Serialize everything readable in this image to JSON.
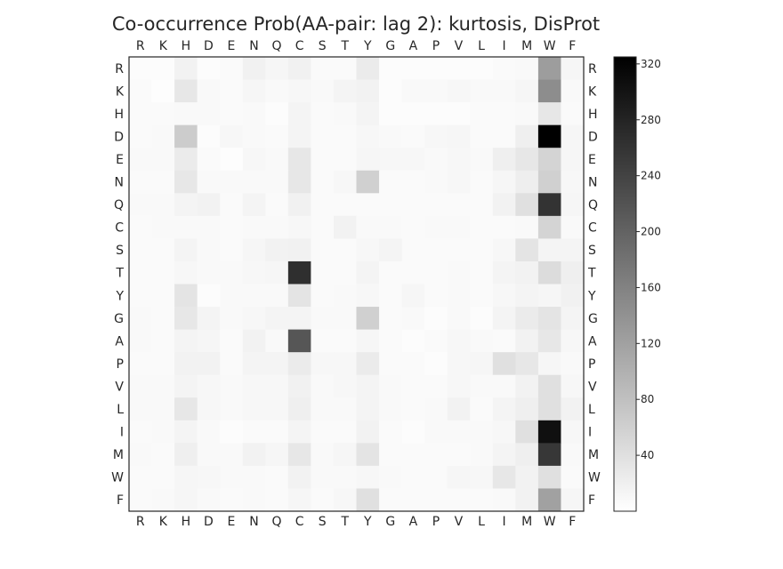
{
  "chart_data": {
    "type": "heatmap",
    "title": "Co-occurrence Prob(AA-pair: lag 2): kurtosis, DisProt",
    "x_labels": [
      "R",
      "K",
      "H",
      "D",
      "E",
      "N",
      "Q",
      "C",
      "S",
      "T",
      "Y",
      "G",
      "A",
      "P",
      "V",
      "L",
      "I",
      "M",
      "W",
      "F"
    ],
    "y_labels": [
      "R",
      "K",
      "H",
      "D",
      "E",
      "N",
      "Q",
      "C",
      "S",
      "T",
      "Y",
      "G",
      "A",
      "P",
      "V",
      "L",
      "I",
      "M",
      "W",
      "F"
    ],
    "colorbar": {
      "min": 0,
      "max": 325,
      "ticks": [
        40,
        80,
        120,
        160,
        200,
        240,
        280,
        320
      ],
      "colormap": "Greys"
    },
    "values": [
      [
        4,
        4,
        16,
        4,
        6,
        18,
        12,
        18,
        6,
        6,
        26,
        4,
        4,
        4,
        4,
        4,
        6,
        8,
        125,
        12
      ],
      [
        6,
        2,
        30,
        8,
        6,
        12,
        8,
        10,
        8,
        14,
        16,
        4,
        8,
        8,
        10,
        8,
        8,
        12,
        145,
        8
      ],
      [
        6,
        6,
        8,
        8,
        6,
        8,
        4,
        14,
        6,
        8,
        14,
        4,
        4,
        4,
        4,
        6,
        6,
        8,
        30,
        6
      ],
      [
        6,
        8,
        65,
        4,
        10,
        8,
        6,
        14,
        6,
        6,
        10,
        8,
        6,
        10,
        12,
        6,
        6,
        20,
        325,
        12
      ],
      [
        8,
        8,
        25,
        6,
        2,
        10,
        8,
        30,
        6,
        6,
        12,
        10,
        10,
        8,
        10,
        8,
        20,
        30,
        55,
        12
      ],
      [
        6,
        6,
        30,
        8,
        8,
        8,
        8,
        30,
        6,
        10,
        60,
        6,
        6,
        8,
        10,
        6,
        12,
        22,
        60,
        10
      ],
      [
        8,
        8,
        14,
        16,
        6,
        14,
        6,
        18,
        6,
        6,
        6,
        6,
        6,
        6,
        6,
        6,
        16,
        40,
        260,
        12
      ],
      [
        6,
        8,
        8,
        8,
        6,
        8,
        8,
        10,
        6,
        16,
        8,
        8,
        6,
        8,
        8,
        6,
        6,
        8,
        55,
        8
      ],
      [
        6,
        6,
        14,
        8,
        6,
        12,
        16,
        18,
        6,
        6,
        10,
        14,
        6,
        6,
        6,
        6,
        10,
        35,
        14,
        14
      ],
      [
        6,
        6,
        10,
        8,
        8,
        10,
        12,
        265,
        6,
        6,
        14,
        6,
        6,
        6,
        8,
        6,
        14,
        16,
        45,
        20
      ],
      [
        6,
        6,
        35,
        4,
        8,
        8,
        8,
        35,
        6,
        8,
        10,
        6,
        12,
        6,
        8,
        6,
        10,
        14,
        12,
        18
      ],
      [
        8,
        6,
        30,
        14,
        8,
        10,
        14,
        14,
        8,
        8,
        60,
        6,
        8,
        4,
        8,
        4,
        14,
        26,
        35,
        14
      ],
      [
        8,
        6,
        14,
        12,
        6,
        16,
        8,
        215,
        6,
        6,
        12,
        6,
        4,
        6,
        10,
        8,
        6,
        16,
        30,
        10
      ],
      [
        6,
        6,
        16,
        16,
        6,
        14,
        14,
        25,
        10,
        10,
        25,
        6,
        6,
        4,
        10,
        12,
        40,
        30,
        12,
        8
      ],
      [
        8,
        8,
        14,
        10,
        8,
        10,
        10,
        18,
        8,
        10,
        14,
        8,
        6,
        6,
        10,
        8,
        8,
        16,
        40,
        10
      ],
      [
        8,
        8,
        30,
        10,
        8,
        10,
        10,
        20,
        8,
        8,
        14,
        8,
        6,
        8,
        16,
        6,
        14,
        20,
        40,
        16
      ],
      [
        6,
        8,
        14,
        8,
        4,
        6,
        6,
        14,
        6,
        6,
        16,
        6,
        4,
        8,
        8,
        8,
        10,
        40,
        305,
        10
      ],
      [
        8,
        6,
        20,
        8,
        8,
        16,
        12,
        30,
        8,
        12,
        35,
        6,
        6,
        6,
        6,
        8,
        14,
        20,
        255,
        8
      ],
      [
        6,
        6,
        12,
        10,
        8,
        8,
        6,
        16,
        8,
        8,
        10,
        8,
        6,
        6,
        12,
        10,
        30,
        16,
        40,
        6
      ],
      [
        6,
        8,
        12,
        8,
        6,
        8,
        6,
        12,
        6,
        10,
        40,
        6,
        6,
        6,
        6,
        6,
        8,
        16,
        120,
        12
      ]
    ]
  }
}
